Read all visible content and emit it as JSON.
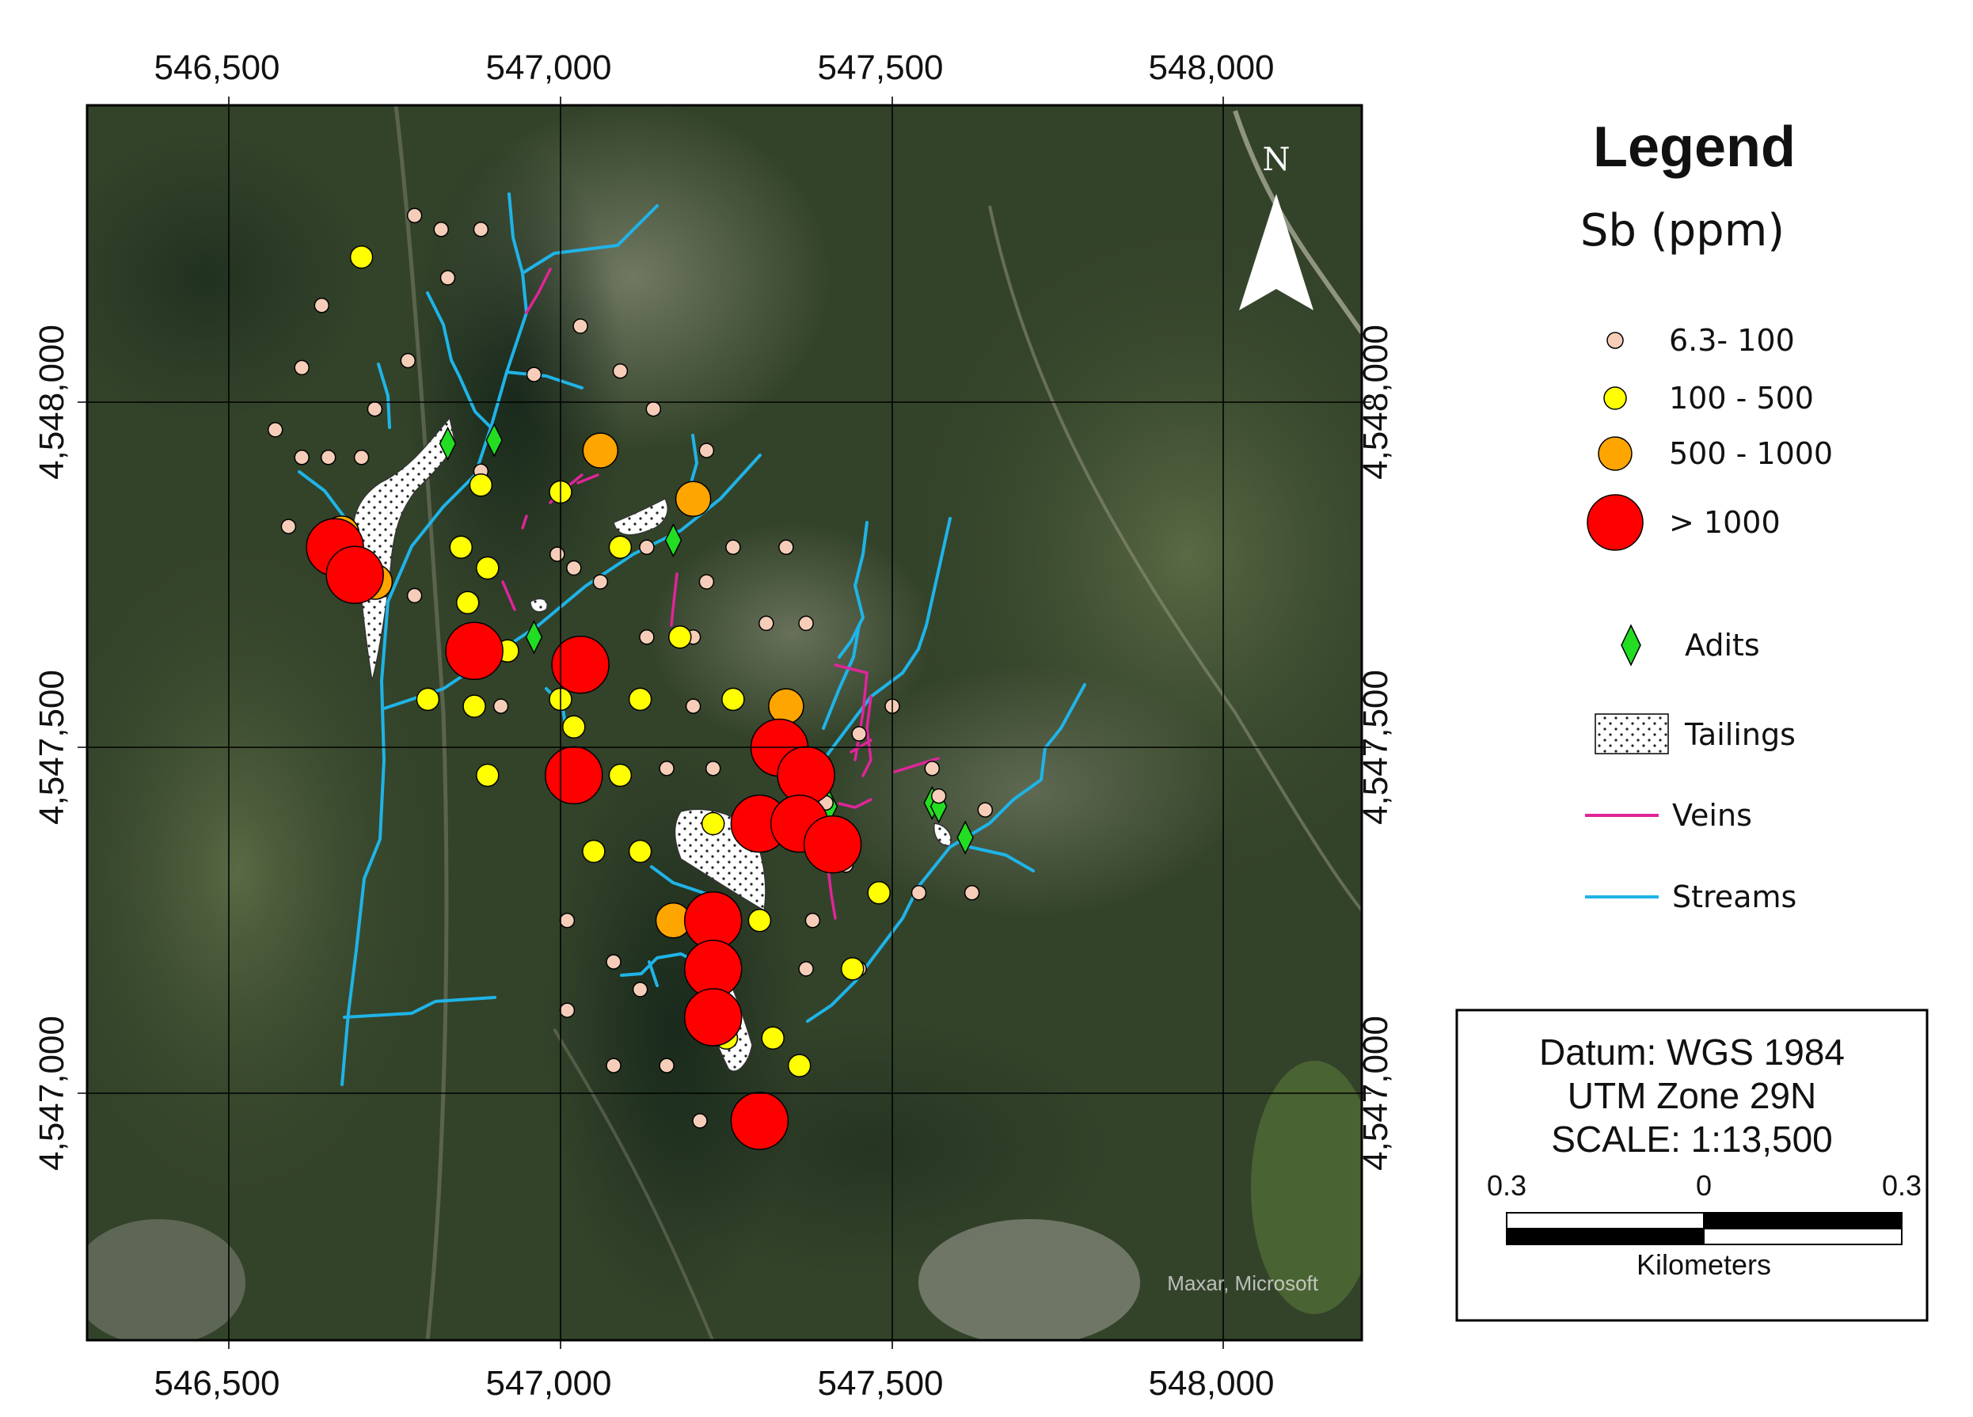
{
  "axes": {
    "x_ticks": [
      "546,500",
      "547,000",
      "547,500",
      "548,000"
    ],
    "y_ticks": [
      "4,548,000",
      "4,547,500",
      "4,547,000"
    ]
  },
  "north_arrow": {
    "letter": "N"
  },
  "credit": "Maxar, Microsoft",
  "legend": {
    "title": "Legend",
    "subtitle": "Sb (ppm)",
    "classes": [
      {
        "label": "6.3- 100",
        "color": "#f6cdb8"
      },
      {
        "label": "100 - 500",
        "color": "#ffff00"
      },
      {
        "label": "500 - 1000",
        "color": "#ffa500"
      },
      {
        "label": "> 1000",
        "color": "#ff0000"
      }
    ],
    "adits": {
      "label": "Adits",
      "color": "#22dd22"
    },
    "tailings": {
      "label": "Tailings"
    },
    "veins": {
      "label": "Veins",
      "color": "#e0259a"
    },
    "streams": {
      "label": "Streams",
      "color": "#1fb4e8"
    }
  },
  "info_box": {
    "datum": "Datum: WGS 1984",
    "zone": "UTM Zone 29N",
    "scale": "SCALE: 1:13,500",
    "scale_labels": [
      "0.3",
      "0",
      "0.3"
    ],
    "units": "Kilometers"
  },
  "samples": [
    {
      "e": 546780,
      "n": 548270,
      "c": 0
    },
    {
      "e": 546820,
      "n": 548250,
      "c": 0
    },
    {
      "e": 546880,
      "n": 548250,
      "c": 0
    },
    {
      "e": 546830,
      "n": 548180,
      "c": 0
    },
    {
      "e": 546640,
      "n": 548140,
      "c": 0
    },
    {
      "e": 546610,
      "n": 548050,
      "c": 0
    },
    {
      "e": 546770,
      "n": 548060,
      "c": 0
    },
    {
      "e": 547030,
      "n": 548110,
      "c": 0
    },
    {
      "e": 546960,
      "n": 548040,
      "c": 0
    },
    {
      "e": 547090,
      "n": 548045,
      "c": 0
    },
    {
      "e": 546720,
      "n": 547990,
      "c": 0
    },
    {
      "e": 547140,
      "n": 547990,
      "c": 0
    },
    {
      "e": 546570,
      "n": 547960,
      "c": 0
    },
    {
      "e": 546610,
      "n": 547920,
      "c": 0
    },
    {
      "e": 546650,
      "n": 547920,
      "c": 0
    },
    {
      "e": 546700,
      "n": 547920,
      "c": 0
    },
    {
      "e": 547220,
      "n": 547930,
      "c": 0
    },
    {
      "e": 546590,
      "n": 547820,
      "c": 0
    },
    {
      "e": 546995,
      "n": 547780,
      "c": 0
    },
    {
      "e": 547130,
      "n": 547790,
      "c": 0
    },
    {
      "e": 547260,
      "n": 547790,
      "c": 0
    },
    {
      "e": 547340,
      "n": 547790,
      "c": 0
    },
    {
      "e": 547060,
      "n": 547740,
      "c": 0
    },
    {
      "e": 547220,
      "n": 547740,
      "c": 0
    },
    {
      "e": 546780,
      "n": 547720,
      "c": 0
    },
    {
      "e": 547310,
      "n": 547680,
      "c": 0
    },
    {
      "e": 547370,
      "n": 547680,
      "c": 0
    },
    {
      "e": 547130,
      "n": 547660,
      "c": 0
    },
    {
      "e": 547200,
      "n": 547660,
      "c": 0
    },
    {
      "e": 546910,
      "n": 547560,
      "c": 0
    },
    {
      "e": 547200,
      "n": 547560,
      "c": 0
    },
    {
      "e": 547500,
      "n": 547560,
      "c": 0
    },
    {
      "e": 547450,
      "n": 547520,
      "c": 0
    },
    {
      "e": 547160,
      "n": 547470,
      "c": 0
    },
    {
      "e": 547230,
      "n": 547470,
      "c": 0
    },
    {
      "e": 547560,
      "n": 547470,
      "c": 0
    },
    {
      "e": 547400,
      "n": 547420,
      "c": 0
    },
    {
      "e": 547570,
      "n": 547430,
      "c": 0
    },
    {
      "e": 547640,
      "n": 547410,
      "c": 0
    },
    {
      "e": 547430,
      "n": 547330,
      "c": 0
    },
    {
      "e": 547540,
      "n": 547290,
      "c": 0
    },
    {
      "e": 547620,
      "n": 547290,
      "c": 0
    },
    {
      "e": 547010,
      "n": 547250,
      "c": 0
    },
    {
      "e": 547380,
      "n": 547250,
      "c": 0
    },
    {
      "e": 547080,
      "n": 547190,
      "c": 0
    },
    {
      "e": 547370,
      "n": 547180,
      "c": 0
    },
    {
      "e": 547450,
      "n": 547180,
      "c": 0
    },
    {
      "e": 547010,
      "n": 547120,
      "c": 0
    },
    {
      "e": 547120,
      "n": 547150,
      "c": 0
    },
    {
      "e": 547080,
      "n": 547040,
      "c": 0
    },
    {
      "e": 547160,
      "n": 547040,
      "c": 0
    },
    {
      "e": 547210,
      "n": 546960,
      "c": 0
    },
    {
      "e": 546880,
      "n": 547900,
      "c": 0
    },
    {
      "e": 547020,
      "n": 547760,
      "c": 0
    },
    {
      "e": 546700,
      "n": 548210,
      "c": 1
    },
    {
      "e": 546880,
      "n": 547880,
      "c": 1
    },
    {
      "e": 547000,
      "n": 547870,
      "c": 1
    },
    {
      "e": 546850,
      "n": 547790,
      "c": 1
    },
    {
      "e": 546890,
      "n": 547760,
      "c": 1
    },
    {
      "e": 547090,
      "n": 547790,
      "c": 1
    },
    {
      "e": 546860,
      "n": 547710,
      "c": 1
    },
    {
      "e": 547180,
      "n": 547660,
      "c": 1
    },
    {
      "e": 546920,
      "n": 547640,
      "c": 1
    },
    {
      "e": 546800,
      "n": 547570,
      "c": 1
    },
    {
      "e": 546870,
      "n": 547560,
      "c": 1
    },
    {
      "e": 547000,
      "n": 547570,
      "c": 1
    },
    {
      "e": 547120,
      "n": 547570,
      "c": 1
    },
    {
      "e": 547260,
      "n": 547570,
      "c": 1
    },
    {
      "e": 547020,
      "n": 547530,
      "c": 1
    },
    {
      "e": 546890,
      "n": 547460,
      "c": 1
    },
    {
      "e": 547090,
      "n": 547460,
      "c": 1
    },
    {
      "e": 547230,
      "n": 547390,
      "c": 1
    },
    {
      "e": 547050,
      "n": 547350,
      "c": 1
    },
    {
      "e": 547120,
      "n": 547350,
      "c": 1
    },
    {
      "e": 547480,
      "n": 547290,
      "c": 1
    },
    {
      "e": 547300,
      "n": 547250,
      "c": 1
    },
    {
      "e": 547440,
      "n": 547180,
      "c": 1
    },
    {
      "e": 547250,
      "n": 547080,
      "c": 1
    },
    {
      "e": 547320,
      "n": 547080,
      "c": 1
    },
    {
      "e": 547360,
      "n": 547040,
      "c": 1
    },
    {
      "e": 547060,
      "n": 547930,
      "c": 2
    },
    {
      "e": 547200,
      "n": 547860,
      "c": 2
    },
    {
      "e": 546670,
      "n": 547810,
      "c": 2
    },
    {
      "e": 546720,
      "n": 547740,
      "c": 2
    },
    {
      "e": 547340,
      "n": 547560,
      "c": 2
    },
    {
      "e": 547170,
      "n": 547250,
      "c": 2
    },
    {
      "e": 546660,
      "n": 547790,
      "c": 3
    },
    {
      "e": 546690,
      "n": 547750,
      "c": 3
    },
    {
      "e": 546870,
      "n": 547640,
      "c": 3
    },
    {
      "e": 547030,
      "n": 547620,
      "c": 3
    },
    {
      "e": 547020,
      "n": 547460,
      "c": 3
    },
    {
      "e": 547330,
      "n": 547500,
      "c": 3
    },
    {
      "e": 547370,
      "n": 547460,
      "c": 3
    },
    {
      "e": 547300,
      "n": 547390,
      "c": 3
    },
    {
      "e": 547360,
      "n": 547390,
      "c": 3
    },
    {
      "e": 547410,
      "n": 547360,
      "c": 3
    },
    {
      "e": 547230,
      "n": 547250,
      "c": 3
    },
    {
      "e": 547230,
      "n": 547180,
      "c": 3
    },
    {
      "e": 547230,
      "n": 547110,
      "c": 3
    },
    {
      "e": 547300,
      "n": 546960,
      "c": 3
    }
  ],
  "adits": [
    {
      "e": 546830,
      "n": 547940
    },
    {
      "e": 546900,
      "n": 547945
    },
    {
      "e": 547170,
      "n": 547800
    },
    {
      "e": 546960,
      "n": 547660
    },
    {
      "e": 547560,
      "n": 547420
    },
    {
      "e": 547570,
      "n": 547415
    },
    {
      "e": 547610,
      "n": 547370
    },
    {
      "e": 547405,
      "n": 547415
    }
  ]
}
